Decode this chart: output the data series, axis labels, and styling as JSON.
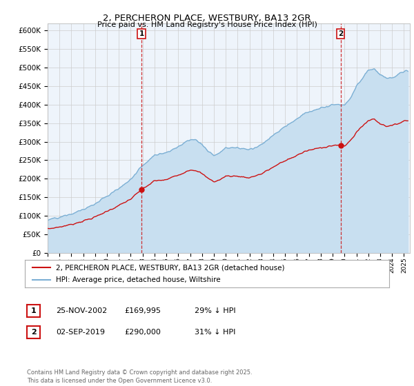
{
  "title": "2, PERCHERON PLACE, WESTBURY, BA13 2GR",
  "subtitle": "Price paid vs. HM Land Registry's House Price Index (HPI)",
  "ylim": [
    0,
    620000
  ],
  "yticks": [
    0,
    50000,
    100000,
    150000,
    200000,
    250000,
    300000,
    350000,
    400000,
    450000,
    500000,
    550000,
    600000
  ],
  "hpi_color": "#7bafd4",
  "hpi_fill_color": "#c8dff0",
  "price_color": "#cc1111",
  "marker_color": "#cc1111",
  "vline_color": "#cc1111",
  "background_color": "#eef4fb",
  "grid_color": "#cccccc",
  "transaction1": {
    "date": "25-NOV-2002",
    "price": 169995,
    "hpi_diff": "29% ↓ HPI",
    "x": 2002.9
  },
  "transaction2": {
    "date": "02-SEP-2019",
    "price": 290000,
    "hpi_diff": "31% ↓ HPI",
    "x": 2019.67
  },
  "legend_label_price": "2, PERCHERON PLACE, WESTBURY, BA13 2GR (detached house)",
  "legend_label_hpi": "HPI: Average price, detached house, Wiltshire",
  "footnote": "Contains HM Land Registry data © Crown copyright and database right 2025.\nThis data is licensed under the Open Government Licence v3.0.",
  "xmin": 1995.0,
  "xmax": 2025.5
}
